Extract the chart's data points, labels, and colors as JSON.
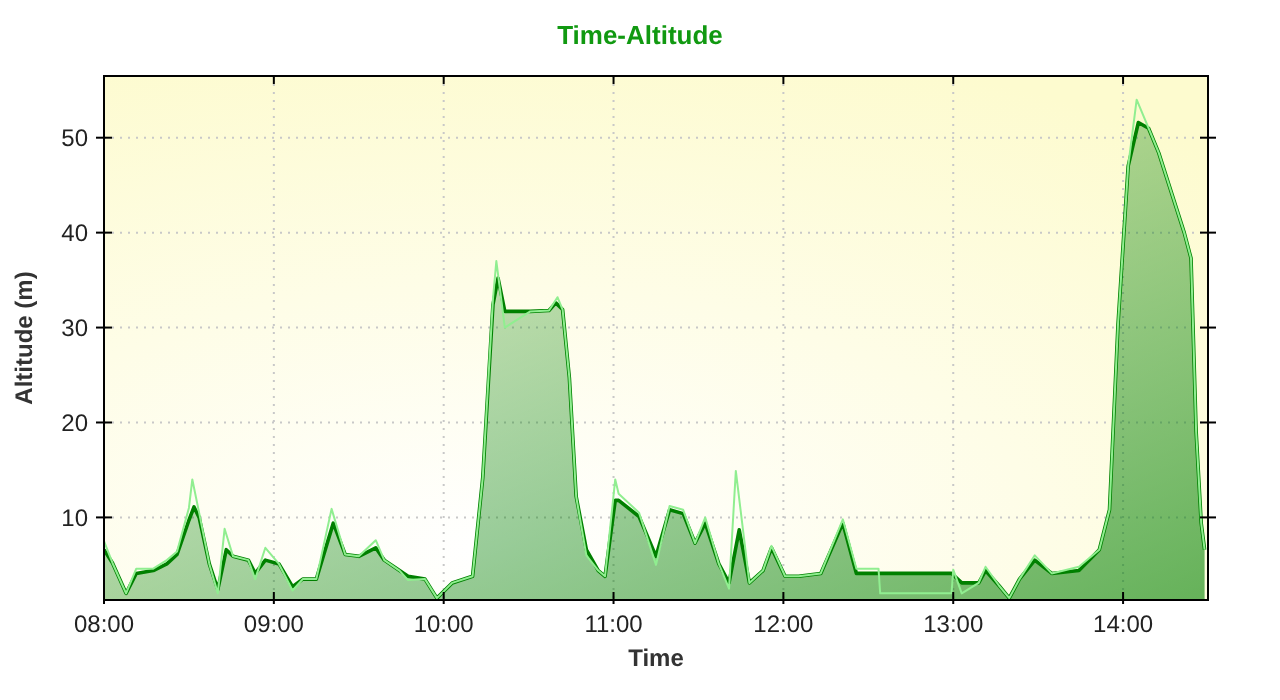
{
  "chart_data": {
    "type": "area",
    "title": "Time-Altitude",
    "xlabel": "Time",
    "ylabel": "Altitude (m)",
    "xlim": [
      8,
      14.5
    ],
    "xticks": [
      {
        "value": 8,
        "label": "08:00"
      },
      {
        "value": 9,
        "label": "09:00"
      },
      {
        "value": 10,
        "label": "10:00"
      },
      {
        "value": 11,
        "label": "11:00"
      },
      {
        "value": 12,
        "label": "12:00"
      },
      {
        "value": 13,
        "label": "13:00"
      },
      {
        "value": 14,
        "label": "14:00"
      }
    ],
    "ylim": [
      1.3,
      56.5
    ],
    "yticks": [
      10,
      20,
      30,
      40,
      50
    ],
    "grid": true,
    "series": [
      {
        "type": "line",
        "color": "#90ee90",
        "x": [
          8.0,
          8.05,
          8.13,
          8.19,
          8.29,
          8.37,
          8.43,
          8.5,
          8.52,
          8.56,
          8.62,
          8.67,
          8.71,
          8.76,
          8.85,
          8.89,
          8.95,
          9.03,
          9.11,
          9.17,
          9.25,
          9.34,
          9.42,
          9.5,
          9.6,
          9.65,
          9.74,
          9.79,
          9.89,
          9.96,
          10.05,
          10.17,
          10.23,
          10.29,
          10.31,
          10.36,
          10.51,
          10.62,
          10.67,
          10.7,
          10.74,
          10.78,
          10.84,
          10.91,
          10.95,
          11.01,
          11.03,
          11.15,
          11.25,
          11.33,
          11.41,
          11.48,
          11.54,
          11.62,
          11.68,
          11.72,
          11.8,
          11.88,
          11.93,
          12.01,
          12.09,
          12.22,
          12.35,
          12.43,
          12.56,
          12.57,
          12.99,
          13.0,
          13.05,
          13.15,
          13.19,
          13.27,
          13.33,
          13.39,
          13.48,
          13.58,
          13.74,
          13.86,
          13.92,
          13.97,
          14.03,
          14.08,
          14.15,
          14.21,
          14.36,
          14.4,
          14.43,
          14.46,
          14.48
        ],
        "values": [
          7.5,
          5.2,
          2.0,
          4.6,
          4.6,
          5.5,
          6.4,
          11.0,
          14.0,
          10.5,
          5.1,
          2.0,
          8.8,
          5.9,
          5.5,
          3.5,
          6.8,
          5.1,
          2.3,
          3.5,
          3.5,
          10.9,
          6.1,
          5.9,
          7.6,
          5.5,
          4.4,
          3.4,
          3.5,
          1.5,
          3.1,
          3.8,
          14.2,
          33.0,
          37.0,
          30.0,
          31.7,
          31.8,
          33.2,
          31.9,
          24.7,
          12.2,
          6.0,
          4.4,
          3.8,
          14.0,
          12.5,
          10.5,
          5.0,
          11.2,
          10.8,
          7.3,
          10.0,
          5.1,
          2.5,
          14.9,
          3.1,
          4.4,
          7.0,
          3.8,
          3.8,
          4.1,
          9.8,
          4.6,
          4.6,
          2.0,
          2.0,
          4.5,
          2.0,
          3.1,
          4.8,
          2.8,
          1.5,
          3.5,
          6.0,
          4.1,
          4.8,
          6.6,
          10.8,
          30.3,
          47.0,
          54.0,
          51.0,
          48.4,
          40.0,
          37.3,
          19.1,
          9.4,
          6.6
        ]
      },
      {
        "color": "#008000",
        "x": [
          8.0,
          8.05,
          8.13,
          8.19,
          8.29,
          8.37,
          8.43,
          8.5,
          8.53,
          8.56,
          8.62,
          8.67,
          8.72,
          8.76,
          8.85,
          8.89,
          8.95,
          9.03,
          9.11,
          9.17,
          9.25,
          9.35,
          9.42,
          9.5,
          9.6,
          9.65,
          9.74,
          9.79,
          9.89,
          9.96,
          10.05,
          10.17,
          10.23,
          10.29,
          10.32,
          10.36,
          10.51,
          10.62,
          10.66,
          10.7,
          10.74,
          10.78,
          10.84,
          10.91,
          10.95,
          11.01,
          11.03,
          11.15,
          11.25,
          11.33,
          11.41,
          11.48,
          11.54,
          11.62,
          11.68,
          11.74,
          11.8,
          11.88,
          11.93,
          12.01,
          12.09,
          12.22,
          12.35,
          12.43,
          12.99,
          13.05,
          13.15,
          13.19,
          13.27,
          13.33,
          13.39,
          13.48,
          13.58,
          13.74,
          13.86,
          13.92,
          13.97,
          14.03,
          14.09,
          14.15,
          14.21,
          14.36,
          14.4,
          14.43,
          14.46,
          14.48
        ],
        "values": [
          6.6,
          5.2,
          2.0,
          4.1,
          4.4,
          5.1,
          6.1,
          9.7,
          11.1,
          10.0,
          5.1,
          2.4,
          6.6,
          5.9,
          5.5,
          4.1,
          5.5,
          5.1,
          2.7,
          3.5,
          3.5,
          9.4,
          6.1,
          5.9,
          6.8,
          5.5,
          4.4,
          3.8,
          3.5,
          1.5,
          3.1,
          3.8,
          14.2,
          32.4,
          35.2,
          31.7,
          31.7,
          31.8,
          32.6,
          31.9,
          24.7,
          12.2,
          6.6,
          4.4,
          3.8,
          11.8,
          11.8,
          10.1,
          5.9,
          10.8,
          10.4,
          7.3,
          9.4,
          5.1,
          3.1,
          8.7,
          3.1,
          4.4,
          6.8,
          3.8,
          3.8,
          4.1,
          9.4,
          4.1,
          4.1,
          3.1,
          3.1,
          4.4,
          2.8,
          1.5,
          3.5,
          5.5,
          4.1,
          4.4,
          6.6,
          10.8,
          30.3,
          47.0,
          51.6,
          51.0,
          48.4,
          40.0,
          37.3,
          19.1,
          9.4,
          6.6
        ]
      }
    ]
  }
}
